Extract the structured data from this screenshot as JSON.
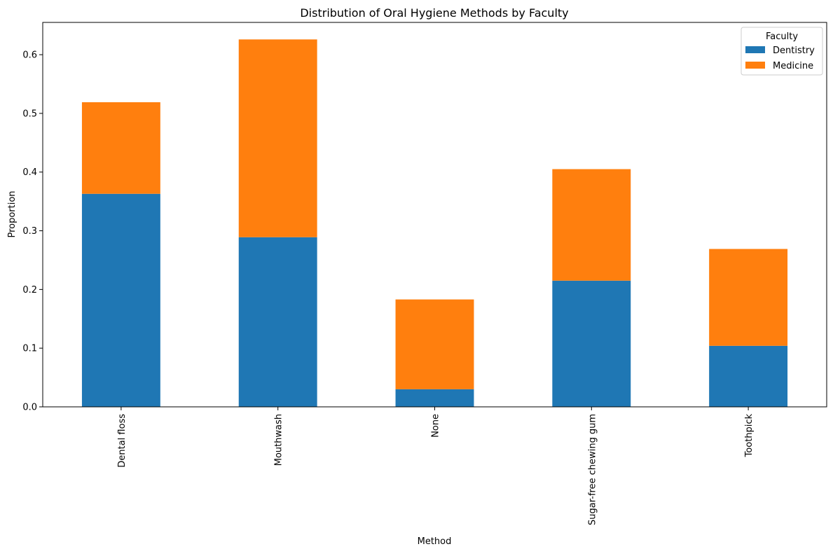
{
  "chart_data": {
    "type": "bar",
    "stacked": true,
    "title": "Distribution of Oral Hygiene Methods by Faculty",
    "xlabel": "Method",
    "ylabel": "Proportion",
    "categories": [
      "Dental floss",
      "Mouthwash",
      "None",
      "Sugar-free chewing gum",
      "Toothpick"
    ],
    "series": [
      {
        "name": "Dentistry",
        "color": "#1f77b4",
        "values": [
          0.363,
          0.289,
          0.03,
          0.215,
          0.104
        ]
      },
      {
        "name": "Medicine",
        "color": "#ff7f0e",
        "values": [
          0.156,
          0.337,
          0.153,
          0.19,
          0.165
        ]
      }
    ],
    "ylim": [
      0,
      0.655
    ],
    "yticks": [
      "0.0",
      "0.1",
      "0.2",
      "0.3",
      "0.4",
      "0.5",
      "0.6"
    ],
    "grid": false,
    "legend": {
      "title": "Faculty",
      "placement": "top-right"
    }
  }
}
